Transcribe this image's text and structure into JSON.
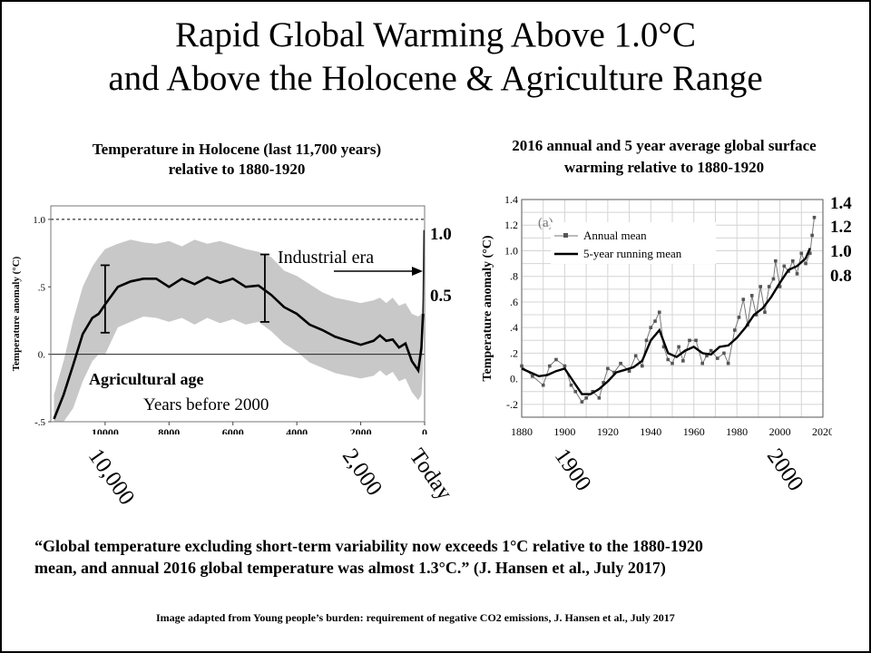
{
  "title_line1": "Rapid Global Warming Above 1.0°C",
  "title_line2": "and Above the Holocene & Agriculture Range",
  "quote_line1": "“Global temperature excluding short-term variability now exceeds 1°C relative to the 1880-1920",
  "quote_line2": "mean, and annual 2016 global temperature was almost 1.3°C.” (J. Hansen et al., July 2017)",
  "credit": "Image adapted from Young people’s burden: requirement of negative CO2 emissions, J. Hansen et al., July 2017",
  "left_labels": [
    "10,000",
    "2,000",
    "Today"
  ],
  "right_labels": [
    "1900",
    "2000"
  ],
  "left_side_ticks": [
    "1.0",
    "0.5"
  ],
  "right_side_ticks": [
    "1.4",
    "1.2",
    "1.0",
    "0.8"
  ],
  "chart_data": [
    {
      "type": "line",
      "title_line1": "Temperature  in Holocene (last 11,700 years)",
      "title_line2": "relative to 1880-1920",
      "xlabel": "Years before 2000",
      "ylabel": "Temperature  anomaly (°C)",
      "xlim": [
        11700,
        0
      ],
      "ylim": [
        -0.5,
        1.1
      ],
      "x_ticks": [
        10000,
        8000,
        6000,
        4000,
        2000,
        0
      ],
      "x_tick_labels": [
        "10000",
        "8000",
        "6000",
        "4000",
        "2000",
        "0"
      ],
      "y_ticks": [
        -0.5,
        0,
        0.5,
        1.0
      ],
      "y_tick_labels": [
        "-.5",
        "0.",
        ".5",
        "1.0"
      ],
      "annotations": {
        "industrial": "Industrial era",
        "agri": "Agricultural age"
      },
      "series": [
        {
          "x": [
            11600,
            11300,
            11000,
            10700,
            10400,
            10200,
            10000,
            9600,
            9200,
            8800,
            8400,
            8000,
            7600,
            7200,
            6800,
            6400,
            6000,
            5600,
            5200,
            4800,
            4400,
            4000,
            3600,
            3200,
            2800,
            2400,
            2000,
            1600,
            1400,
            1200,
            1000,
            800,
            600,
            400,
            200,
            100,
            50,
            20
          ],
          "y": [
            -0.48,
            -0.3,
            -0.08,
            0.15,
            0.27,
            0.3,
            0.37,
            0.5,
            0.54,
            0.56,
            0.56,
            0.5,
            0.56,
            0.52,
            0.57,
            0.53,
            0.56,
            0.5,
            0.51,
            0.44,
            0.35,
            0.3,
            0.22,
            0.18,
            0.13,
            0.1,
            0.07,
            0.1,
            0.14,
            0.1,
            0.11,
            0.05,
            0.08,
            -0.05,
            -0.12,
            0.05,
            0.3,
            0.92
          ]
        }
      ],
      "band_upper": [
        -0.3,
        -0.05,
        0.25,
        0.5,
        0.65,
        0.72,
        0.78,
        0.82,
        0.85,
        0.83,
        0.82,
        0.84,
        0.8,
        0.85,
        0.82,
        0.84,
        0.81,
        0.78,
        0.76,
        0.72,
        0.62,
        0.58,
        0.52,
        0.46,
        0.42,
        0.4,
        0.38,
        0.4,
        0.42,
        0.38,
        0.42,
        0.36,
        0.38,
        0.3,
        0.28,
        0.3,
        0.45
      ],
      "band_lower": [
        -0.5,
        -0.5,
        -0.4,
        -0.2,
        -0.05,
        0.0,
        0.0,
        0.2,
        0.24,
        0.28,
        0.27,
        0.24,
        0.27,
        0.22,
        0.27,
        0.23,
        0.26,
        0.22,
        0.24,
        0.17,
        0.08,
        0.02,
        -0.06,
        -0.1,
        -0.14,
        -0.16,
        -0.18,
        -0.16,
        -0.12,
        -0.16,
        -0.13,
        -0.2,
        -0.18,
        -0.28,
        -0.34,
        -0.3,
        -0.12
      ],
      "error_bars": [
        {
          "x": 10000,
          "y1": 0.16,
          "y2": 0.66
        },
        {
          "x": 5000,
          "y1": 0.24,
          "y2": 0.74
        }
      ]
    },
    {
      "type": "line",
      "title_line1": "2016 annual and 5 year average global surface",
      "title_line2": "warming  relative to 1880-1920",
      "ylabel": "Temperature anomaly (°C)",
      "panel_label": "(a)",
      "xlim": [
        1880,
        2020
      ],
      "ylim": [
        -0.3,
        1.4
      ],
      "x_ticks": [
        1880,
        1900,
        1920,
        1940,
        1960,
        1980,
        2000,
        2020
      ],
      "x_tick_labels": [
        "1880",
        "1900",
        "1920",
        "1940",
        "1960",
        "1980",
        "2000",
        "2020"
      ],
      "y_ticks": [
        -0.2,
        0,
        0.2,
        0.4,
        0.6,
        0.8,
        1.0,
        1.2,
        1.4
      ],
      "y_tick_labels": [
        "-.2",
        "0.",
        ".2",
        ".4",
        ".6",
        ".8",
        "1.0",
        "1.2",
        "1.4"
      ],
      "series": [
        {
          "name": "Annual  mean",
          "x": [
            1880,
            1885,
            1890,
            1893,
            1896,
            1900,
            1903,
            1905,
            1908,
            1910,
            1913,
            1916,
            1918,
            1920,
            1923,
            1926,
            1930,
            1933,
            1936,
            1938,
            1940,
            1942,
            1944,
            1946,
            1948,
            1950,
            1953,
            1955,
            1958,
            1961,
            1964,
            1966,
            1968,
            1971,
            1974,
            1976,
            1979,
            1981,
            1983,
            1985,
            1987,
            1989,
            1991,
            1993,
            1995,
            1997,
            1998,
            2000,
            2002,
            2004,
            2006,
            2008,
            2010,
            2012,
            2014,
            2015,
            2016
          ],
          "y": [
            0.1,
            0.02,
            -0.05,
            0.1,
            0.15,
            0.1,
            -0.05,
            -0.1,
            -0.18,
            -0.15,
            -0.1,
            -0.15,
            -0.03,
            0.08,
            0.05,
            0.12,
            0.06,
            0.18,
            0.1,
            0.3,
            0.4,
            0.45,
            0.52,
            0.25,
            0.15,
            0.12,
            0.25,
            0.14,
            0.3,
            0.3,
            0.12,
            0.18,
            0.22,
            0.16,
            0.2,
            0.12,
            0.38,
            0.48,
            0.62,
            0.42,
            0.65,
            0.5,
            0.72,
            0.52,
            0.72,
            0.78,
            0.92,
            0.72,
            0.88,
            0.84,
            0.92,
            0.82,
            0.98,
            0.9,
            0.98,
            1.12,
            1.26
          ]
        },
        {
          "name": "5-year running mean",
          "x": [
            1880,
            1884,
            1888,
            1892,
            1896,
            1900,
            1904,
            1908,
            1912,
            1916,
            1920,
            1924,
            1928,
            1932,
            1936,
            1940,
            1944,
            1948,
            1952,
            1956,
            1960,
            1964,
            1968,
            1972,
            1976,
            1980,
            1984,
            1988,
            1992,
            1996,
            2000,
            2004,
            2008,
            2012,
            2014
          ],
          "y": [
            0.08,
            0.05,
            0.02,
            0.03,
            0.06,
            0.08,
            -0.02,
            -0.12,
            -0.12,
            -0.08,
            -0.02,
            0.05,
            0.07,
            0.09,
            0.14,
            0.3,
            0.38,
            0.2,
            0.17,
            0.22,
            0.25,
            0.2,
            0.19,
            0.25,
            0.26,
            0.32,
            0.4,
            0.5,
            0.55,
            0.64,
            0.75,
            0.85,
            0.88,
            0.94,
            1.02
          ]
        }
      ]
    }
  ]
}
